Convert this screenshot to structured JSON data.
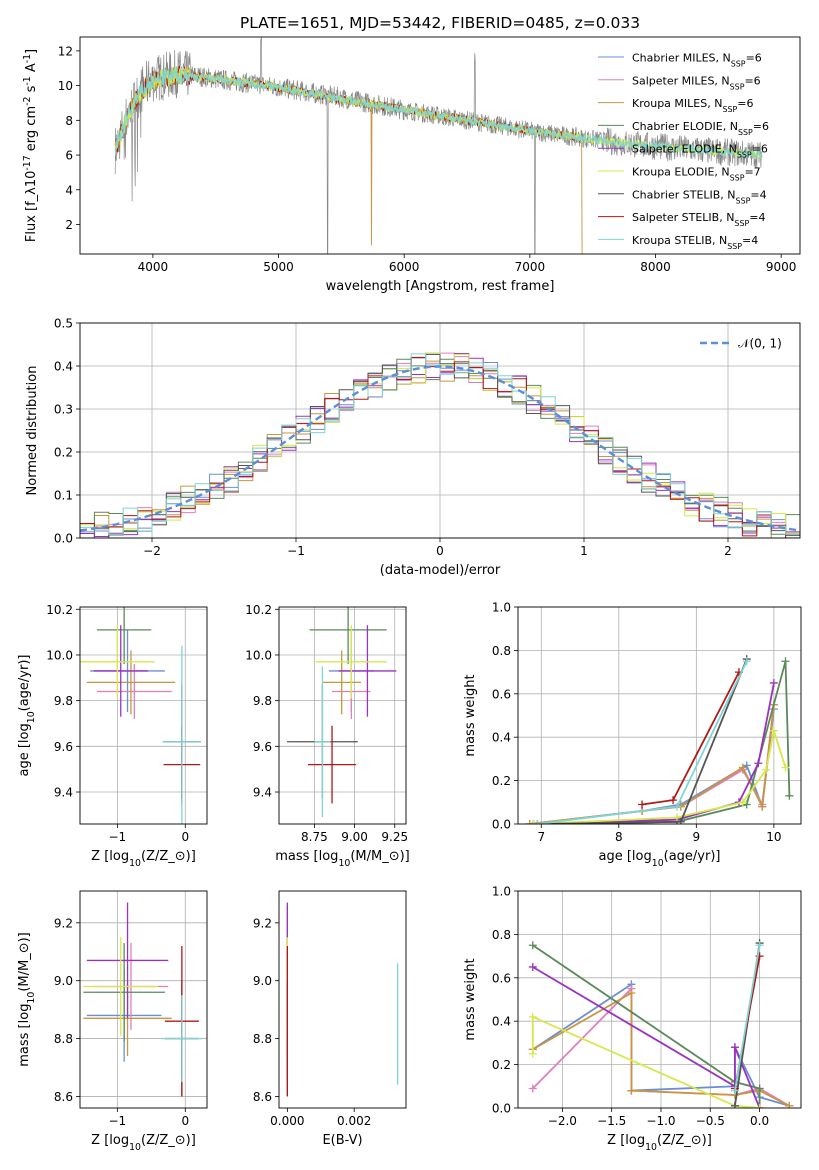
{
  "figure_title": "PLATE=1651, MJD=53442, FIBERID=0485, z=0.033",
  "series_names": [
    "Chabrier MILES, N$_{SSP}$=6",
    "Salpeter MILES, N$_{SSP}$=6",
    "Kroupa MILES, N$_{SSP}$=6",
    "Chabrier ELODIE, N$_{SSP}$=6",
    "Salpeter ELODIE, N$_{SSP}$=6",
    "Kroupa ELODIE, N$_{SSP}$=7",
    "Chabrier STELIB, N$_{SSP}$=4",
    "Salpeter STELIB, N$_{SSP}$=4",
    "Kroupa STELIB, N$_{SSP}$=4"
  ],
  "series_colors": [
    "#6b8fd6",
    "#e07fbf",
    "#c8963e",
    "#5a8a5a",
    "#9a32c0",
    "#d6e84a",
    "#555555",
    "#b01818",
    "#7fd4d4"
  ],
  "chart_data": [
    {
      "id": "spectrum",
      "type": "line",
      "title": "",
      "xlabel": "wavelength [Angstrom, rest frame]",
      "ylabel": "Flux [f$_\\lambda$10$^{-17}$ erg cm$^{-2}$ s$^{-1}$ A$^{-1}$]",
      "xlim": [
        3420,
        9150
      ],
      "ylim": [
        0.3,
        12.8
      ],
      "xticks": [
        4000,
        5000,
        6000,
        7000,
        8000,
        9000
      ],
      "yticks": [
        2,
        4,
        6,
        8,
        10,
        12
      ],
      "grid": false,
      "legend": "upper right",
      "data_wavelength": [
        3700,
        3800,
        3900,
        4000,
        4200,
        4500,
        5000,
        5500,
        6000,
        6500,
        7000,
        7400,
        7600,
        8000,
        8500,
        8850
      ],
      "data_flux": [
        6.3,
        8.3,
        9.7,
        10.4,
        10.7,
        10.4,
        9.9,
        9.3,
        8.6,
        8.0,
        7.4,
        7.0,
        6.8,
        6.5,
        6.2,
        6.0
      ],
      "model_flux": [
        6.3,
        8.3,
        9.6,
        10.3,
        10.6,
        10.4,
        9.9,
        9.2,
        8.6,
        8.0,
        7.4,
        7.0,
        6.8,
        6.5,
        6.2,
        6.0
      ]
    },
    {
      "id": "residual_hist",
      "type": "histogram",
      "xlabel": "(data-model)/error",
      "ylabel": "Normed distribution",
      "xlim": [
        -2.5,
        2.5
      ],
      "ylim": [
        0,
        0.5
      ],
      "xticks": [
        -2,
        -1,
        0,
        1,
        2
      ],
      "yticks": [
        0,
        0.1,
        0.2,
        0.3,
        0.4,
        0.5
      ],
      "grid": true,
      "legend": "upper right",
      "reference_curve": "$\\mathcal{N}(0,1)$",
      "bin_width": 0.1,
      "bin_start": -2.5
    },
    {
      "id": "age_vs_Z",
      "type": "errorbar",
      "xlabel": "Z [log$_{10}$(Z/Z$_\\odot$)]",
      "ylabel": "age  [log$_{10}$(age/yr)]",
      "xlim": [
        -1.55,
        0.32
      ],
      "ylim": [
        9.26,
        10.21
      ],
      "xticks": [
        -1,
        0
      ],
      "yticks": [
        9.4,
        9.6,
        9.8,
        10.0,
        10.2
      ],
      "grid": true,
      "points": [
        {
          "x": -0.85,
          "y": 9.93,
          "xerr": 0.55,
          "yerr": 0.18
        },
        {
          "x": -0.75,
          "y": 9.84,
          "xerr": 0.55,
          "yerr": 0.12
        },
        {
          "x": -0.8,
          "y": 9.88,
          "xerr": 0.65,
          "yerr": 0.14
        },
        {
          "x": -0.9,
          "y": 10.11,
          "xerr": 0.4,
          "yerr": 0.15
        },
        {
          "x": -0.95,
          "y": 9.93,
          "xerr": 0.4,
          "yerr": 0.2
        },
        {
          "x": -1.0,
          "y": 9.97,
          "xerr": 0.55,
          "yerr": 0.16
        },
        {
          "x": -0.05,
          "y": 9.62,
          "xerr": 0.28,
          "yerr": 0.25
        },
        {
          "x": -0.05,
          "y": 9.52,
          "xerr": 0.27,
          "yerr": 0.17
        },
        {
          "x": -0.05,
          "y": 9.62,
          "xerr": 0.28,
          "yerr": 0.42
        }
      ]
    },
    {
      "id": "age_vs_mass",
      "type": "errorbar",
      "xlabel": "mass [log$_{10}$(M/M$_\\odot$)]",
      "ylabel": "",
      "xlim": [
        8.53,
        9.32
      ],
      "ylim": [
        9.26,
        10.21
      ],
      "xticks": [
        8.75,
        9.0,
        9.25
      ],
      "yticks": [
        9.4,
        9.6,
        9.8,
        10.0,
        10.2
      ],
      "grid": true,
      "points": [
        {
          "x": 8.98,
          "y": 9.93,
          "xerr": 0.14,
          "yerr": 0.18
        },
        {
          "x": 8.98,
          "y": 9.84,
          "xerr": 0.12,
          "yerr": 0.12
        },
        {
          "x": 8.92,
          "y": 9.88,
          "xerr": 0.12,
          "yerr": 0.14
        },
        {
          "x": 8.96,
          "y": 10.11,
          "xerr": 0.24,
          "yerr": 0.15
        },
        {
          "x": 9.08,
          "y": 9.93,
          "xerr": 0.18,
          "yerr": 0.2
        },
        {
          "x": 8.98,
          "y": 9.97,
          "xerr": 0.22,
          "yerr": 0.16
        },
        {
          "x": 8.8,
          "y": 9.62,
          "xerr": 0.22,
          "yerr": 0.25
        },
        {
          "x": 8.86,
          "y": 9.52,
          "xerr": 0.15,
          "yerr": 0.17
        },
        {
          "x": 8.8,
          "y": 9.62,
          "xerr": 0.05,
          "yerr": 0.33
        }
      ]
    },
    {
      "id": "weight_vs_age",
      "type": "line",
      "xlabel": "age  [log$_{10}$(age/yr)]",
      "ylabel": "mass weight",
      "xlim": [
        6.7,
        10.35
      ],
      "ylim": [
        0,
        1
      ],
      "xticks": [
        7,
        8,
        9,
        10
      ],
      "yticks": [
        0,
        0.2,
        0.4,
        0.6,
        0.8,
        1.0
      ],
      "grid": true,
      "series": [
        {
          "x": [
            6.85,
            8.3,
            8.8,
            9.65,
            9.85,
            10.0
          ],
          "y": [
            0.0,
            0.06,
            0.09,
            0.27,
            0.08,
            0.53
          ]
        },
        {
          "x": [
            6.85,
            8.3,
            8.8,
            9.6,
            9.85,
            10.0
          ],
          "y": [
            0.0,
            0.06,
            0.08,
            0.25,
            0.09,
            0.55
          ]
        },
        {
          "x": [
            6.85,
            8.3,
            8.8,
            9.6,
            9.85,
            10.0
          ],
          "y": [
            0.0,
            0.06,
            0.08,
            0.26,
            0.08,
            0.55
          ]
        },
        {
          "x": [
            6.9,
            8.75,
            9.65,
            10.15,
            10.2
          ],
          "y": [
            0.0,
            0.01,
            0.09,
            0.75,
            0.13
          ]
        },
        {
          "x": [
            6.9,
            8.75,
            9.55,
            9.8,
            10.0
          ],
          "y": [
            0.0,
            0.02,
            0.1,
            0.28,
            0.65
          ]
        },
        {
          "x": [
            6.9,
            8.75,
            9.6,
            9.9,
            10.0,
            10.15
          ],
          "y": [
            0.0,
            0.03,
            0.1,
            0.25,
            0.43,
            0.26
          ]
        },
        {
          "x": [
            6.95,
            8.8,
            9.65
          ],
          "y": [
            0.0,
            0.01,
            0.76
          ]
        },
        {
          "x": [
            8.3,
            8.7,
            9.55
          ],
          "y": [
            0.09,
            0.11,
            0.7
          ]
        },
        {
          "x": [
            6.95,
            8.75,
            9.65
          ],
          "y": [
            0.0,
            0.08,
            0.75
          ]
        }
      ]
    },
    {
      "id": "mass_vs_Z",
      "type": "errorbar",
      "xlabel": "Z [log$_{10}$(Z/Z$_\\odot$)]",
      "ylabel": "mass [log$_{10}$(M/M$_\\odot$)]",
      "xlim": [
        -1.55,
        0.32
      ],
      "ylim": [
        8.56,
        9.31
      ],
      "xticks": [
        -1,
        0
      ],
      "yticks": [
        8.6,
        8.8,
        9.0,
        9.2
      ],
      "grid": true,
      "points": [
        {
          "x": -0.9,
          "y": 8.88,
          "xerr": 0.55,
          "yerr": 0.16
        },
        {
          "x": -0.8,
          "y": 8.98,
          "xerr": 0.55,
          "yerr": 0.15
        },
        {
          "x": -0.85,
          "y": 8.87,
          "xerr": 0.65,
          "yerr": 0.13
        },
        {
          "x": -0.9,
          "y": 8.96,
          "xerr": 0.6,
          "yerr": 0.17
        },
        {
          "x": -0.85,
          "y": 9.07,
          "xerr": 0.6,
          "yerr": 0.2
        },
        {
          "x": -0.95,
          "y": 8.98,
          "xerr": 0.55,
          "yerr": 0.17
        },
        {
          "x": -0.05,
          "y": 8.8,
          "xerr": 0.25,
          "yerr": 0.2
        },
        {
          "x": -0.05,
          "y": 8.86,
          "xerr": 0.25,
          "yerr": 0.26
        },
        {
          "x": -0.05,
          "y": 8.8,
          "xerr": 0.3,
          "yerr": 0.15
        }
      ]
    },
    {
      "id": "mass_vs_ebv",
      "type": "errorbar",
      "xlabel": "E(B-V)",
      "ylabel": "",
      "xlim": [
        -0.00025,
        0.00355
      ],
      "ylim": [
        8.56,
        9.31
      ],
      "xticks": [
        0.0,
        0.002
      ],
      "yticks": [
        8.6,
        8.8,
        9.0,
        9.2
      ],
      "grid": false,
      "points": [
        {
          "x": 0.0,
          "y": 8.88,
          "xerr": 0,
          "yerr": 0.16
        },
        {
          "x": 0.0,
          "y": 8.98,
          "xerr": 0,
          "yerr": 0.15
        },
        {
          "x": 0.0,
          "y": 8.87,
          "xerr": 0,
          "yerr": 0.13
        },
        {
          "x": 0.0,
          "y": 8.96,
          "xerr": 0,
          "yerr": 0.3
        },
        {
          "x": 0.0,
          "y": 9.07,
          "xerr": 0,
          "yerr": 0.2
        },
        {
          "x": 0.0,
          "y": 8.98,
          "xerr": 0,
          "yerr": 0.17
        },
        {
          "x": 0.0,
          "y": 8.8,
          "xerr": 0,
          "yerr": 0.2
        },
        {
          "x": 0.0,
          "y": 8.86,
          "xerr": 0,
          "yerr": 0.26
        },
        {
          "x": 0.0033,
          "y": 8.85,
          "xerr": 0,
          "yerr": 0.21
        }
      ]
    },
    {
      "id": "weight_vs_Z",
      "type": "line",
      "xlabel": "Z [log$_{10}$(Z/Z$_\\odot$)]",
      "ylabel": "mass weight",
      "xlim": [
        -2.45,
        0.42
      ],
      "ylim": [
        0,
        1
      ],
      "xticks": [
        -2.0,
        -1.5,
        -1.0,
        -0.5,
        0.0
      ],
      "yticks": [
        0,
        0.2,
        0.4,
        0.6,
        0.8,
        1.0
      ],
      "grid": true,
      "series": [
        {
          "x": [
            -2.3,
            -1.3,
            -1.3,
            -0.25,
            -0.25,
            0.0,
            0.3
          ],
          "y": [
            0.27,
            0.57,
            0.08,
            0.1,
            0.28,
            0.05,
            0.01
          ]
        },
        {
          "x": [
            -2.3,
            -1.3,
            -1.3,
            -0.25,
            0.0,
            0.3
          ],
          "y": [
            0.09,
            0.55,
            0.08,
            0.06,
            0.09,
            0.01
          ]
        },
        {
          "x": [
            -2.3,
            -1.3,
            -1.3,
            -0.25,
            0.0,
            0.3
          ],
          "y": [
            0.27,
            0.53,
            0.08,
            0.06,
            0.08,
            0.01
          ]
        },
        {
          "x": [
            -2.3,
            -0.25,
            0.0,
            0.0
          ],
          "y": [
            0.75,
            0.12,
            0.09,
            0.0
          ]
        },
        {
          "x": [
            -2.3,
            -0.25,
            -0.25,
            0.0
          ],
          "y": [
            0.65,
            0.1,
            0.28,
            0.0
          ]
        },
        {
          "x": [
            -2.3,
            -2.3,
            -0.25,
            0.0
          ],
          "y": [
            0.25,
            0.42,
            0.01,
            0.0
          ]
        },
        {
          "x": [
            -0.25,
            0.0
          ],
          "y": [
            0.01,
            0.76
          ]
        },
        {
          "x": [
            -0.25,
            0.0
          ],
          "y": [
            0.09,
            0.7
          ]
        },
        {
          "x": [
            -0.25,
            0.0
          ],
          "y": [
            0.08,
            0.75
          ]
        }
      ]
    }
  ]
}
